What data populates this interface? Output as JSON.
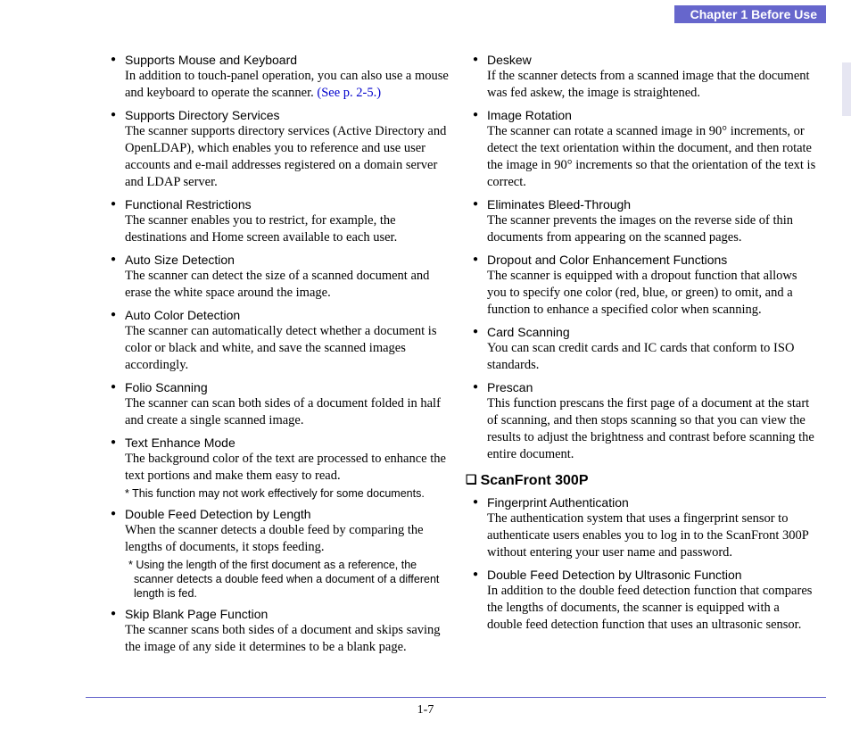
{
  "header": {
    "chapter_label": "Chapter 1   Before Use"
  },
  "page_number": "1-7",
  "col1": [
    {
      "title": "Supports Mouse and Keyboard",
      "body_pre": "In addition to touch-panel operation, you can also use a mouse and keyboard to operate the scanner. ",
      "link": "(See p. 2-5.)"
    },
    {
      "title": "Supports Directory Services",
      "body": "The scanner supports directory services (Active Directory and OpenLDAP), which enables you to reference and use user accounts and e-mail addresses registered on a domain server and LDAP server."
    },
    {
      "title": "Functional Restrictions",
      "body": "The scanner enables you to restrict, for example, the destinations and Home screen available to each user."
    },
    {
      "title": "Auto Size Detection",
      "body": "The scanner can detect the size of a scanned document and erase the white space around the image."
    },
    {
      "title": "Auto Color Detection",
      "body": "The scanner can automatically detect whether a document is color or black and white, and save the scanned images accordingly."
    },
    {
      "title": "Folio Scanning",
      "body": "The scanner can scan both sides of a document folded in half and create a single scanned image."
    },
    {
      "title": "Text Enhance Mode",
      "body": "The background color of the text are processed to enhance the text portions and make them easy to read.",
      "note": "* This function may not work effectively for some documents."
    },
    {
      "title": "Double Feed Detection by Length",
      "body": "When the scanner detects a double feed by comparing the lengths of documents, it stops feeding.",
      "note": "* Using the length of the first document as a reference, the scanner detects a double feed when a document of a different length is fed."
    },
    {
      "title": "Skip Blank Page Function",
      "body": "The scanner scans both sides of a document and skips saving the image of any side it determines to be a blank page."
    }
  ],
  "col2": [
    {
      "title": "Deskew",
      "body": "If the scanner detects from a scanned image that the document was fed askew, the image is straightened."
    },
    {
      "title": "Image Rotation",
      "body": "The scanner can rotate a scanned image in 90° increments, or detect the text orientation within the document, and then rotate the image in 90° increments so that the orientation of the text is correct."
    },
    {
      "title": "Eliminates Bleed-Through",
      "body": "The scanner prevents the images on the reverse side of thin documents from appearing on the scanned pages."
    },
    {
      "title": "Dropout and Color Enhancement Functions",
      "body": "The scanner is equipped with a dropout function that allows you to specify one color (red, blue, or green) to omit, and a function to enhance a specified color when scanning."
    },
    {
      "title": "Card Scanning",
      "body": "You can scan credit cards and IC cards that conform to ISO standards."
    },
    {
      "title": "Prescan",
      "body": "This function prescans the first page of a document at the start of scanning, and then stops scanning so that you can view the results to adjust the brightness and contrast before scanning the entire document."
    }
  ],
  "section2": {
    "heading": "ScanFront 300P",
    "items": [
      {
        "title": "Fingerprint Authentication",
        "body": "The authentication system that uses a fingerprint sensor to authenticate users enables you to log in to the ScanFront 300P without entering your user name and password."
      },
      {
        "title": "Double Feed Detection by Ultrasonic Function",
        "body": "In addition to the double feed detection function that compares the lengths of documents, the scanner is equipped with a double feed detection function that uses an ultrasonic sensor."
      }
    ]
  }
}
